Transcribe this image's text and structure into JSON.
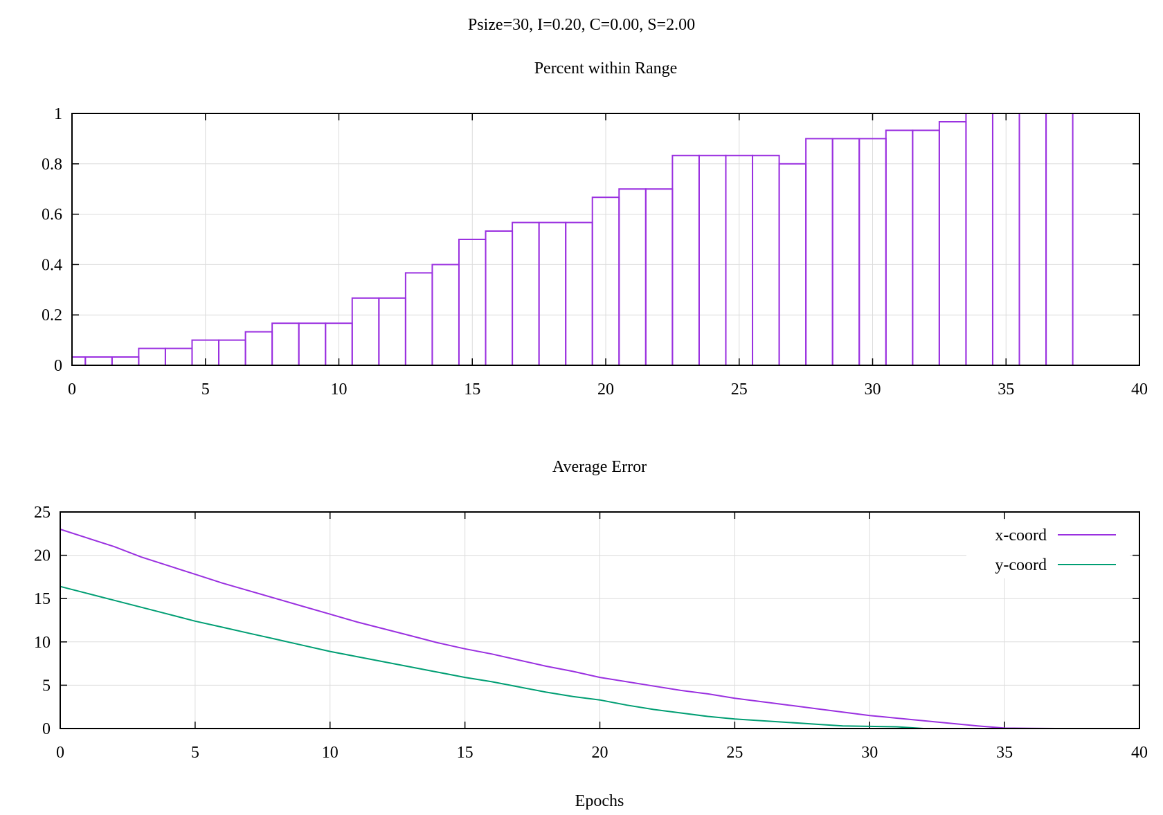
{
  "figure_title": "Psize=30, I=0.20, C=0.00, S=2.00",
  "colors": {
    "purple": "#9a30e0",
    "teal": "#009e73",
    "grid": "#dcdcdc",
    "frame": "#000000"
  },
  "chart_data": [
    {
      "type": "bar",
      "title": "Percent within Range",
      "xlabel": "",
      "ylabel": "",
      "xlim": [
        0,
        40
      ],
      "ylim": [
        0,
        1
      ],
      "grid": true,
      "x_ticks": [
        "0",
        "5",
        "10",
        "15",
        "20",
        "25",
        "30",
        "35",
        "40"
      ],
      "y_ticks": [
        "0",
        "0.2",
        "0.4",
        "0.6",
        "0.8",
        "1"
      ],
      "categories": [
        0,
        1,
        2,
        3,
        4,
        5,
        6,
        7,
        8,
        9,
        10,
        11,
        12,
        13,
        14,
        15,
        16,
        17,
        18,
        19,
        20,
        21,
        22,
        23,
        24,
        25,
        26,
        27,
        28,
        29,
        30,
        31,
        32,
        33,
        34,
        35,
        36,
        37
      ],
      "values": [
        0.033,
        0.033,
        0.033,
        0.067,
        0.067,
        0.1,
        0.1,
        0.133,
        0.167,
        0.167,
        0.167,
        0.267,
        0.267,
        0.367,
        0.4,
        0.5,
        0.533,
        0.567,
        0.567,
        0.567,
        0.667,
        0.7,
        0.7,
        0.833,
        0.833,
        0.833,
        0.833,
        0.8,
        0.9,
        0.9,
        0.9,
        0.933,
        0.933,
        0.967,
        1.0,
        1.0,
        1.0,
        1.0
      ],
      "bar_width": 1,
      "color": "#9a30e0"
    },
    {
      "type": "line",
      "title": "Average Error",
      "xlabel": "Epochs",
      "ylabel": "",
      "xlim": [
        0,
        40
      ],
      "ylim": [
        0,
        25
      ],
      "grid": true,
      "legend": "top-right",
      "x_ticks": [
        "0",
        "5",
        "10",
        "15",
        "20",
        "25",
        "30",
        "35",
        "40"
      ],
      "y_ticks": [
        "0",
        "5",
        "10",
        "15",
        "20",
        "25"
      ],
      "x": [
        0,
        1,
        2,
        3,
        4,
        5,
        6,
        7,
        8,
        9,
        10,
        11,
        12,
        13,
        14,
        15,
        16,
        17,
        18,
        19,
        20,
        21,
        22,
        23,
        24,
        25,
        26,
        27,
        28,
        29,
        30,
        31,
        32,
        33,
        34,
        35,
        36,
        37
      ],
      "series": [
        {
          "name": "x-coord",
          "color": "#9a30e0",
          "values": [
            23.0,
            22.0,
            21.0,
            19.8,
            18.8,
            17.8,
            16.8,
            15.9,
            15.0,
            14.1,
            13.2,
            12.3,
            11.5,
            10.7,
            9.9,
            9.2,
            8.6,
            7.9,
            7.2,
            6.6,
            5.9,
            5.4,
            4.9,
            4.4,
            4.0,
            3.5,
            3.1,
            2.7,
            2.3,
            1.9,
            1.5,
            1.2,
            0.9,
            0.6,
            0.3,
            0.05,
            0.02,
            0.0
          ]
        },
        {
          "name": "y-coord",
          "color": "#009e73",
          "values": [
            16.4,
            15.6,
            14.8,
            14.0,
            13.2,
            12.4,
            11.7,
            11.0,
            10.3,
            9.6,
            8.9,
            8.3,
            7.7,
            7.1,
            6.5,
            5.9,
            5.4,
            4.8,
            4.2,
            3.7,
            3.3,
            2.7,
            2.2,
            1.8,
            1.4,
            1.1,
            0.9,
            0.7,
            0.5,
            0.3,
            0.25,
            0.2,
            0.0,
            0.0,
            0.0,
            0.0,
            0.0,
            0.0
          ]
        }
      ]
    }
  ]
}
